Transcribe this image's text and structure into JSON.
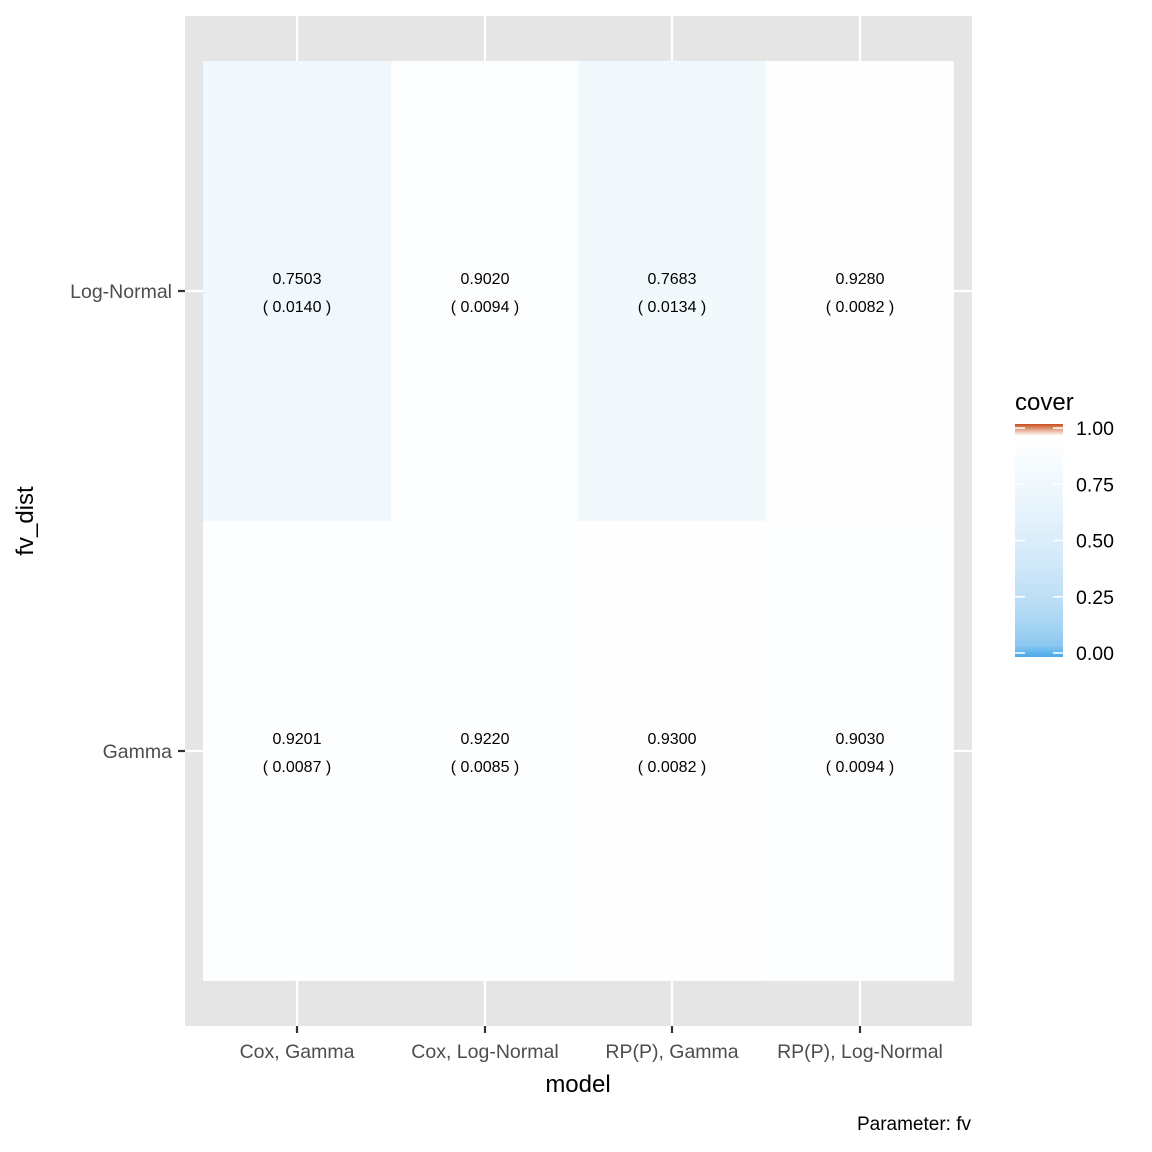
{
  "chart_data": {
    "type": "heatmap",
    "xlabel": "model",
    "ylabel": "fv_dist",
    "caption": "Parameter: fv",
    "x_categories": [
      "Cox, Gamma",
      "Cox, Log-Normal",
      "RP(P), Gamma",
      "RP(P), Log-Normal"
    ],
    "y_categories": [
      "Gamma",
      "Log-Normal"
    ],
    "cells": [
      {
        "model": "Cox, Gamma",
        "fv_dist": "Log-Normal",
        "cover": 0.7503,
        "label": "0.7503",
        "se_label": "( 0.0140 )"
      },
      {
        "model": "Cox, Log-Normal",
        "fv_dist": "Log-Normal",
        "cover": 0.902,
        "label": "0.9020",
        "se_label": "( 0.0094 )"
      },
      {
        "model": "RP(P), Gamma",
        "fv_dist": "Log-Normal",
        "cover": 0.7683,
        "label": "0.7683",
        "se_label": "( 0.0134 )"
      },
      {
        "model": "RP(P), Log-Normal",
        "fv_dist": "Log-Normal",
        "cover": 0.928,
        "label": "0.9280",
        "se_label": "( 0.0082 )"
      },
      {
        "model": "Cox, Gamma",
        "fv_dist": "Gamma",
        "cover": 0.9201,
        "label": "0.9201",
        "se_label": "( 0.0087 )"
      },
      {
        "model": "Cox, Log-Normal",
        "fv_dist": "Gamma",
        "cover": 0.922,
        "label": "0.9220",
        "se_label": "( 0.0085 )"
      },
      {
        "model": "RP(P), Gamma",
        "fv_dist": "Gamma",
        "cover": 0.93,
        "label": "0.9300",
        "se_label": "( 0.0082 )"
      },
      {
        "model": "RP(P), Log-Normal",
        "fv_dist": "Gamma",
        "cover": 0.903,
        "label": "0.9030",
        "se_label": "( 0.0094 )"
      }
    ],
    "legend": {
      "title": "cover",
      "range": [
        0,
        1
      ],
      "breaks": [
        1.0,
        0.75,
        0.5,
        0.25,
        0.0
      ],
      "break_labels": [
        "1.00",
        "0.75",
        "0.50",
        "0.25",
        "0.00"
      ],
      "low_color": "#4AA8E8",
      "mid_color": "#FFFFFF",
      "high_color": "#C8501A",
      "placement": "right"
    },
    "panel_background": "#E5E5E5",
    "grid": true
  }
}
